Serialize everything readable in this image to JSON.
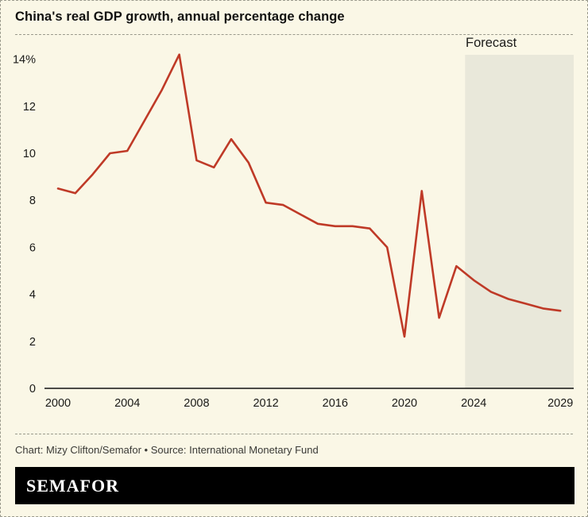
{
  "header": {
    "title": "China's real GDP growth, annual percentage change"
  },
  "chart_data": {
    "type": "line",
    "title": "China's real GDP growth, annual percentage change",
    "series_name": "China real GDP growth, annual % change",
    "x": [
      2000,
      2001,
      2002,
      2003,
      2004,
      2005,
      2006,
      2007,
      2008,
      2009,
      2010,
      2011,
      2012,
      2013,
      2014,
      2015,
      2016,
      2017,
      2018,
      2019,
      2020,
      2021,
      2022,
      2023,
      2024,
      2025,
      2026,
      2027,
      2028,
      2029
    ],
    "values": [
      8.5,
      8.3,
      9.1,
      10.0,
      10.1,
      11.4,
      12.7,
      14.2,
      9.7,
      9.4,
      10.6,
      9.6,
      7.9,
      7.8,
      7.4,
      7.0,
      6.9,
      6.9,
      6.8,
      6.0,
      2.2,
      8.4,
      3.0,
      5.2,
      4.6,
      4.1,
      3.8,
      3.6,
      3.4,
      3.3
    ],
    "ylim": [
      0,
      14.3
    ],
    "ytick_values": [
      0,
      2,
      4,
      6,
      8,
      10,
      12,
      14
    ],
    "ytick_labels": [
      "0",
      "2",
      "4",
      "6",
      "8",
      "10",
      "12",
      "14%"
    ],
    "xtick_values": [
      2000,
      2004,
      2008,
      2012,
      2016,
      2020,
      2024,
      2029
    ],
    "xtick_labels": [
      "2000",
      "2004",
      "2008",
      "2012",
      "2016",
      "2020",
      "2024",
      "2029"
    ],
    "forecast_label": "Forecast",
    "forecast_start": 2023.5,
    "grid": false,
    "legend": "none",
    "line_color": "#bf3a27",
    "forecast_fill": "#e9e8da",
    "axis_color": "#111110",
    "background": "#faf7e6"
  },
  "footer": {
    "credit": "Chart: Mizy Clifton/Semafor • Source: International Monetary Fund",
    "logo_text": "SEMAFOR"
  }
}
